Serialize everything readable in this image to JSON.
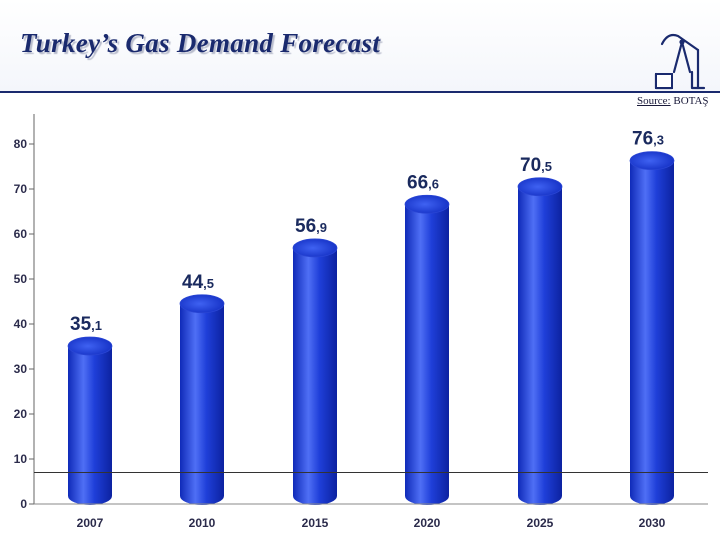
{
  "header": {
    "title": "Turkey’s Gas Demand Forecast",
    "source_label": "Source:",
    "source_value": "BOTAŞ"
  },
  "logo": {
    "icon": "oil-pump-icon"
  },
  "colors": {
    "title": "#1a2a6e",
    "bar": "#1f3fd9",
    "bar_highlight": "#4f6ff5",
    "label": "#1a2a5e"
  },
  "chart_data": {
    "type": "bar",
    "title": "Turkey’s Gas Demand Forecast",
    "categories": [
      "2007",
      "2010",
      "2015",
      "2020",
      "2025",
      "2030"
    ],
    "values": [
      35.1,
      44.5,
      56.9,
      66.6,
      70.5,
      76.3
    ],
    "value_labels": [
      {
        "int": "35",
        "dec": ",1"
      },
      {
        "int": "44",
        "dec": ",5"
      },
      {
        "int": "56",
        "dec": ",9"
      },
      {
        "int": "66",
        "dec": ",6"
      },
      {
        "int": "70",
        "dec": ",5"
      },
      {
        "int": "76",
        "dec": ",3"
      }
    ],
    "yticks": [
      0,
      10,
      20,
      30,
      40,
      50,
      60,
      70,
      80
    ],
    "ylim": [
      0,
      85
    ],
    "xlabel": "",
    "ylabel": "",
    "reference_line": 7
  }
}
